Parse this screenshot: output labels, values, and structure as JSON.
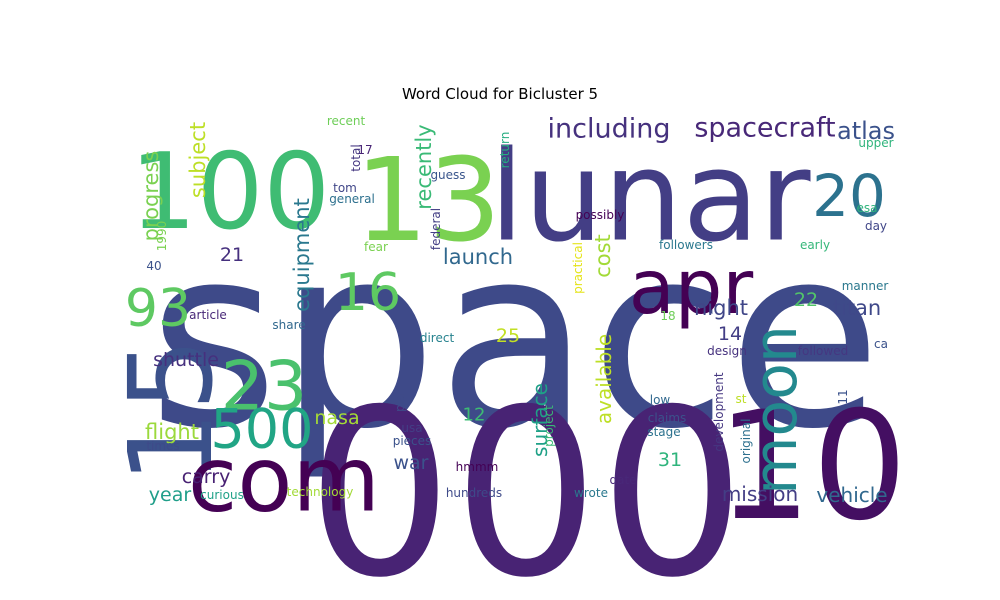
{
  "chart_data": {
    "type": "wordcloud",
    "title": "Word Cloud for Bicluster 5",
    "words": [
      {
        "text": "space",
        "weight": 1.0,
        "color": "#3e4a89",
        "rotate": false
      },
      {
        "text": "000",
        "weight": 0.85,
        "color": "#482374",
        "rotate": false
      },
      {
        "text": "lunar",
        "weight": 0.62,
        "color": "#433e85",
        "rotate": false
      },
      {
        "text": "13",
        "weight": 0.55,
        "color": "#7ad151",
        "rotate": false
      },
      {
        "text": "10",
        "weight": 0.52,
        "color": "#440f62",
        "rotate": false
      },
      {
        "text": "100",
        "weight": 0.5,
        "color": "#3fbc73",
        "rotate": false
      },
      {
        "text": "15",
        "weight": 0.45,
        "color": "#3b518b",
        "rotate": true
      },
      {
        "text": "com",
        "weight": 0.35,
        "color": "#440154",
        "rotate": false
      },
      {
        "text": "apr",
        "weight": 0.3,
        "color": "#440154",
        "rotate": false
      },
      {
        "text": "23",
        "weight": 0.27,
        "color": "#4ac16d",
        "rotate": false
      },
      {
        "text": "moon",
        "weight": 0.22,
        "color": "#23898e",
        "rotate": true
      },
      {
        "text": "500",
        "weight": 0.22,
        "color": "#21a585",
        "rotate": false
      },
      {
        "text": "20",
        "weight": 0.2,
        "color": "#2c728e",
        "rotate": false
      },
      {
        "text": "93",
        "weight": 0.19,
        "color": "#5ec962",
        "rotate": false
      },
      {
        "text": "16",
        "weight": 0.19,
        "color": "#5ec962",
        "rotate": false
      },
      {
        "text": "spacecraft",
        "weight": 0.1,
        "color": "#482878",
        "rotate": false
      },
      {
        "text": "including",
        "weight": 0.1,
        "color": "#46327e",
        "rotate": false
      },
      {
        "text": "atlas",
        "weight": 0.09,
        "color": "#3b528b",
        "rotate": false
      },
      {
        "text": "subject",
        "weight": 0.08,
        "color": "#bddf26",
        "rotate": true
      },
      {
        "text": "recently",
        "weight": 0.08,
        "color": "#3aba76",
        "rotate": true
      },
      {
        "text": "progress",
        "weight": 0.08,
        "color": "#7ad151",
        "rotate": true
      },
      {
        "text": "equipment",
        "weight": 0.08,
        "color": "#2a788e",
        "rotate": true
      },
      {
        "text": "launch",
        "weight": 0.09,
        "color": "#31688e",
        "rotate": false
      },
      {
        "text": "cost",
        "weight": 0.09,
        "color": "#a2da37",
        "rotate": true
      },
      {
        "text": "night",
        "weight": 0.09,
        "color": "#404688",
        "rotate": false
      },
      {
        "text": "titan",
        "weight": 0.09,
        "color": "#3f4889",
        "rotate": false
      },
      {
        "text": "shuttle",
        "weight": 0.08,
        "color": "#46307e",
        "rotate": false
      },
      {
        "text": "flight",
        "weight": 0.09,
        "color": "#9bd93c",
        "rotate": false
      },
      {
        "text": "carry",
        "weight": 0.08,
        "color": "#482173",
        "rotate": false
      },
      {
        "text": "year",
        "weight": 0.08,
        "color": "#1f9e89",
        "rotate": false
      },
      {
        "text": "nasa",
        "weight": 0.08,
        "color": "#a5db36",
        "rotate": false
      },
      {
        "text": "war",
        "weight": 0.08,
        "color": "#3b528b",
        "rotate": false
      },
      {
        "text": "surface",
        "weight": 0.09,
        "color": "#1fa187",
        "rotate": true
      },
      {
        "text": "available",
        "weight": 0.09,
        "color": "#bddf26",
        "rotate": true
      },
      {
        "text": "mission",
        "weight": 0.08,
        "color": "#433e85",
        "rotate": false
      },
      {
        "text": "vehicle",
        "weight": 0.08,
        "color": "#31688e",
        "rotate": false
      },
      {
        "text": "21",
        "weight": 0.08,
        "color": "#46307e",
        "rotate": false
      },
      {
        "text": "25",
        "weight": 0.08,
        "color": "#c2df23",
        "rotate": false
      },
      {
        "text": "22",
        "weight": 0.08,
        "color": "#52c569",
        "rotate": false
      },
      {
        "text": "14",
        "weight": 0.08,
        "color": "#433e85",
        "rotate": false
      },
      {
        "text": "31",
        "weight": 0.08,
        "color": "#2fb47c",
        "rotate": false
      },
      {
        "text": "12",
        "weight": 0.07,
        "color": "#3dbc74",
        "rotate": false
      },
      {
        "text": "recent",
        "weight": 0.05,
        "color": "#6ece58",
        "rotate": false
      },
      {
        "text": "17",
        "weight": 0.05,
        "color": "#482475",
        "rotate": false
      },
      {
        "text": "total",
        "weight": 0.05,
        "color": "#453781",
        "rotate": true
      },
      {
        "text": "tom",
        "weight": 0.05,
        "color": "#404688",
        "rotate": false
      },
      {
        "text": "general",
        "weight": 0.05,
        "color": "#2d708e",
        "rotate": false
      },
      {
        "text": "guess",
        "weight": 0.05,
        "color": "#39558c",
        "rotate": false
      },
      {
        "text": "return",
        "weight": 0.05,
        "color": "#26ad81",
        "rotate": true
      },
      {
        "text": "upper",
        "weight": 0.05,
        "color": "#2fb47c",
        "rotate": false
      },
      {
        "text": "esa",
        "weight": 0.05,
        "color": "#2fb47c",
        "rotate": false
      },
      {
        "text": "day",
        "weight": 0.05,
        "color": "#404688",
        "rotate": false
      },
      {
        "text": "possibly",
        "weight": 0.05,
        "color": "#440154",
        "rotate": false
      },
      {
        "text": "federal",
        "weight": 0.05,
        "color": "#433e85",
        "rotate": true
      },
      {
        "text": "fear",
        "weight": 0.05,
        "color": "#7ad151",
        "rotate": false
      },
      {
        "text": "followers",
        "weight": 0.05,
        "color": "#2a788e",
        "rotate": false
      },
      {
        "text": "early",
        "weight": 0.05,
        "color": "#35b779",
        "rotate": false
      },
      {
        "text": "1990",
        "weight": 0.05,
        "color": "#7ad151",
        "rotate": true
      },
      {
        "text": "40",
        "weight": 0.05,
        "color": "#3b528b",
        "rotate": false
      },
      {
        "text": "article",
        "weight": 0.05,
        "color": "#482878",
        "rotate": false
      },
      {
        "text": "share",
        "weight": 0.05,
        "color": "#31688e",
        "rotate": false
      },
      {
        "text": "practical",
        "weight": 0.05,
        "color": "#e5e419",
        "rotate": true
      },
      {
        "text": "18",
        "weight": 0.05,
        "color": "#6ece58",
        "rotate": false
      },
      {
        "text": "manner",
        "weight": 0.05,
        "color": "#2a788e",
        "rotate": false
      },
      {
        "text": "direct",
        "weight": 0.05,
        "color": "#26828e",
        "rotate": false
      },
      {
        "text": "design",
        "weight": 0.05,
        "color": "#46327e",
        "rotate": false
      },
      {
        "text": "followed",
        "weight": 0.05,
        "color": "#453781",
        "rotate": false
      },
      {
        "text": "ca",
        "weight": 0.05,
        "color": "#3b528b",
        "rotate": false
      },
      {
        "text": "low",
        "weight": 0.05,
        "color": "#31688e",
        "rotate": false
      },
      {
        "text": "development",
        "weight": 0.05,
        "color": "#453781",
        "rotate": true
      },
      {
        "text": "st",
        "weight": 0.05,
        "color": "#bddf26",
        "rotate": false
      },
      {
        "text": "11",
        "weight": 0.05,
        "color": "#3b528b",
        "rotate": true
      },
      {
        "text": "plan",
        "weight": 0.05,
        "color": "#3e4a89",
        "rotate": true
      },
      {
        "text": "usa",
        "weight": 0.05,
        "color": "#433e85",
        "rotate": false
      },
      {
        "text": "project",
        "weight": 0.05,
        "color": "#3aba76",
        "rotate": true
      },
      {
        "text": "claims",
        "weight": 0.05,
        "color": "#3b528b",
        "rotate": false
      },
      {
        "text": "stage",
        "weight": 0.05,
        "color": "#2c728e",
        "rotate": false
      },
      {
        "text": "original",
        "weight": 0.05,
        "color": "#2d708e",
        "rotate": true
      },
      {
        "text": "times",
        "weight": 0.05,
        "color": "#3e4a89",
        "rotate": false
      },
      {
        "text": "pieces",
        "weight": 0.05,
        "color": "#3b528b",
        "rotate": false
      },
      {
        "text": "date",
        "weight": 0.05,
        "color": "#482878",
        "rotate": false
      },
      {
        "text": "hmmm",
        "weight": 0.05,
        "color": "#440154",
        "rotate": false
      },
      {
        "text": "curious",
        "weight": 0.05,
        "color": "#1fa187",
        "rotate": false
      },
      {
        "text": "technology",
        "weight": 0.05,
        "color": "#a2da37",
        "rotate": false
      },
      {
        "text": "hundreds",
        "weight": 0.05,
        "color": "#3e4a89",
        "rotate": false
      },
      {
        "text": "wrote",
        "weight": 0.05,
        "color": "#2a788e",
        "rotate": false
      }
    ]
  }
}
